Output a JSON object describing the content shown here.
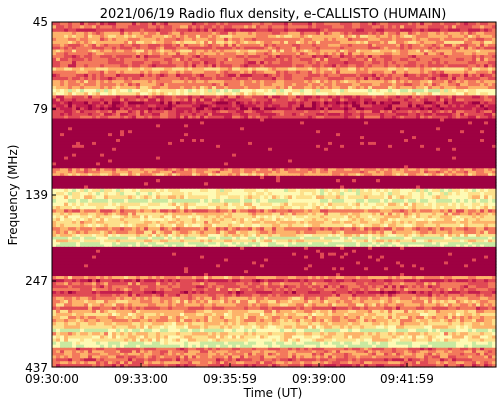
{
  "chart_data": {
    "type": "heatmap",
    "title": "2021/06/19  Radio flux density, e-CALLISTO (HUMAIN)",
    "xlabel": "Time (UT)",
    "ylabel": "Frequency (MHz)",
    "x_ticks": [
      "09:30:00",
      "09:33:00",
      "09:35:59",
      "09:39:00",
      "09:41:59"
    ],
    "y_ticks": [
      "45",
      "79",
      "139",
      "247",
      "437"
    ],
    "colormap": [
      "#9e0142",
      "#c51f4e",
      "#e04a55",
      "#f3795c",
      "#fdb36a",
      "#fde08b",
      "#fefab4",
      "#c9e9a0"
    ],
    "bands": [
      {
        "f0": 45,
        "f1": 48,
        "level": 0.3
      },
      {
        "f0": 48,
        "f1": 52,
        "level": 0.55
      },
      {
        "f0": 52,
        "f1": 57,
        "level": 0.4
      },
      {
        "f0": 57,
        "f1": 62,
        "level": 0.45
      },
      {
        "f0": 62,
        "f1": 66,
        "level": 0.35
      },
      {
        "f0": 66,
        "f1": 70,
        "level": 0.6
      },
      {
        "f0": 70,
        "f1": 73,
        "level": 0.75
      },
      {
        "f0": 73,
        "f1": 79,
        "level": 0.3
      },
      {
        "f0": 79,
        "f1": 85,
        "level": 0.2
      },
      {
        "f0": 85,
        "f1": 118,
        "level": 0.0
      },
      {
        "f0": 118,
        "f1": 124,
        "level": 0.4
      },
      {
        "f0": 124,
        "f1": 135,
        "level": 0.0
      },
      {
        "f0": 135,
        "f1": 141,
        "level": 0.7
      },
      {
        "f0": 141,
        "f1": 148,
        "level": 0.85
      },
      {
        "f0": 148,
        "f1": 158,
        "level": 0.6
      },
      {
        "f0": 158,
        "f1": 170,
        "level": 0.75
      },
      {
        "f0": 170,
        "f1": 182,
        "level": 0.55
      },
      {
        "f0": 182,
        "f1": 192,
        "level": 0.8
      },
      {
        "f0": 192,
        "f1": 198,
        "level": 1.0
      },
      {
        "f0": 198,
        "f1": 240,
        "level": 0.05
      },
      {
        "f0": 240,
        "f1": 255,
        "level": 0.35
      },
      {
        "f0": 255,
        "f1": 275,
        "level": 0.2
      },
      {
        "f0": 275,
        "f1": 300,
        "level": 0.4
      },
      {
        "f0": 300,
        "f1": 325,
        "level": 0.65
      },
      {
        "f0": 325,
        "f1": 355,
        "level": 0.8
      },
      {
        "f0": 355,
        "f1": 385,
        "level": 0.9
      },
      {
        "f0": 385,
        "f1": 405,
        "level": 0.5
      },
      {
        "f0": 405,
        "f1": 437,
        "level": 0.35
      }
    ]
  }
}
